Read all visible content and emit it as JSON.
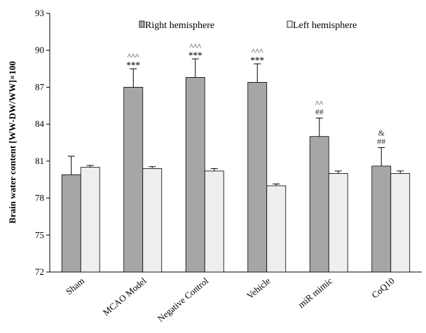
{
  "chart_data": {
    "type": "bar",
    "ylabel": "Brain water content [WW-DW/WW]×100",
    "ylim": [
      72,
      93
    ],
    "yticks": [
      72,
      75,
      78,
      81,
      84,
      87,
      90,
      93
    ],
    "categories": [
      "Sham",
      "MCAO Model",
      "Negative Control",
      "Vehicle",
      "miR mimic",
      "CoQ10"
    ],
    "series": [
      {
        "name": "Right hemisphere",
        "color": "#a6a6a6",
        "values": [
          79.9,
          87.0,
          87.8,
          87.4,
          83.0,
          80.6
        ],
        "errors": [
          1.5,
          1.5,
          1.5,
          1.5,
          1.5,
          1.5
        ],
        "annotations": [
          [],
          [
            "^^^",
            "***"
          ],
          [
            "^^^",
            "***"
          ],
          [
            "^^^",
            "***"
          ],
          [
            "^^",
            "##"
          ],
          [
            "&",
            "##"
          ]
        ]
      },
      {
        "name": "Left hemisphere",
        "color": "#eeeeee",
        "values": [
          80.5,
          80.4,
          80.2,
          79.0,
          80.0,
          80.0
        ],
        "errors": [
          0.15,
          0.15,
          0.2,
          0.15,
          0.2,
          0.2
        ],
        "annotations": [
          [],
          [],
          [],
          [],
          [],
          []
        ]
      }
    ],
    "legend_position": "top"
  }
}
